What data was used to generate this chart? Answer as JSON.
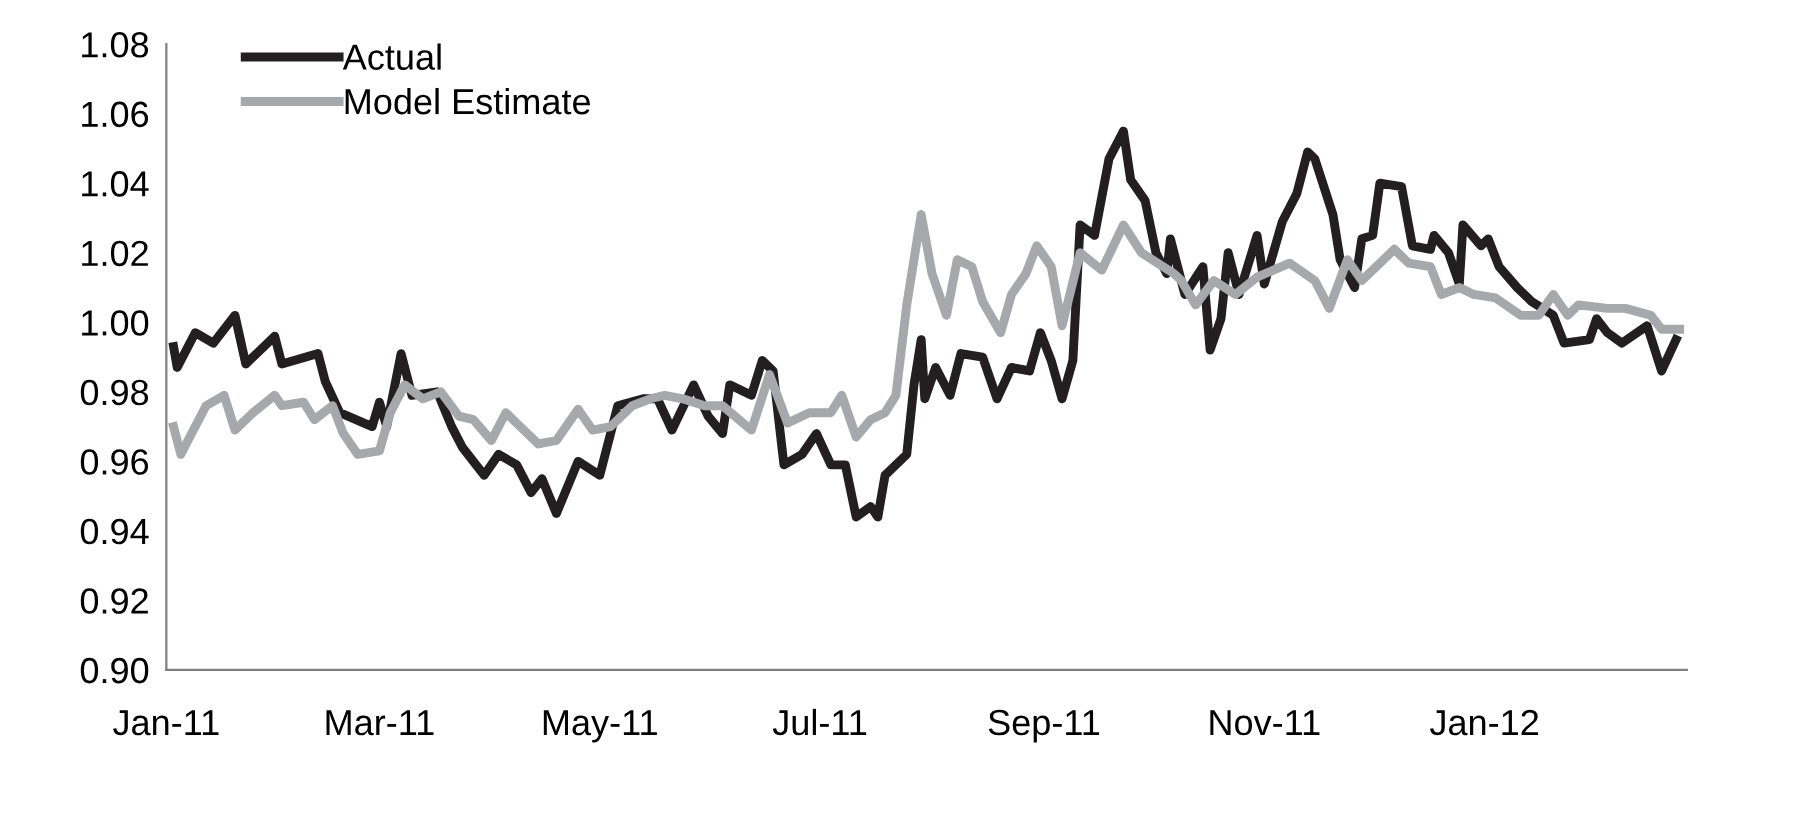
{
  "chart_data": {
    "type": "line",
    "series": [
      {
        "name": "Actual",
        "color": "#231f20",
        "x": [
          "2011-01-03",
          "2011-01-04",
          "2011-01-09",
          "2011-01-14",
          "2011-01-20",
          "2011-01-23",
          "2011-01-31",
          "2011-02-02",
          "2011-02-12",
          "2011-02-14",
          "2011-02-18",
          "2011-02-27",
          "2011-03-01",
          "2011-03-03",
          "2011-03-07",
          "2011-03-10",
          "2011-03-17",
          "2011-03-21",
          "2011-03-24",
          "2011-03-30",
          "2011-04-03",
          "2011-04-08",
          "2011-04-12",
          "2011-04-15",
          "2011-04-19",
          "2011-04-25",
          "2011-05-01",
          "2011-05-06",
          "2011-05-13",
          "2011-05-17",
          "2011-05-21",
          "2011-05-27",
          "2011-05-31",
          "2011-06-04",
          "2011-06-06",
          "2011-06-12",
          "2011-06-15",
          "2011-06-18",
          "2011-06-21",
          "2011-06-26",
          "2011-06-30",
          "2011-07-04",
          "2011-07-08",
          "2011-07-11",
          "2011-07-15",
          "2011-07-17",
          "2011-07-19",
          "2011-07-25",
          "2011-07-27",
          "2011-07-29",
          "2011-07-30",
          "2011-08-02",
          "2011-08-06",
          "2011-08-09",
          "2011-08-15",
          "2011-08-19",
          "2011-08-23",
          "2011-08-28",
          "2011-08-31",
          "2011-09-03",
          "2011-09-06",
          "2011-09-09",
          "2011-09-11",
          "2011-09-15",
          "2011-09-19",
          "2011-09-23",
          "2011-09-25",
          "2011-09-29",
          "2011-10-02",
          "2011-10-05",
          "2011-10-06",
          "2011-10-10",
          "2011-10-15",
          "2011-10-17",
          "2011-10-20",
          "2011-10-22",
          "2011-10-25",
          "2011-10-30",
          "2011-11-01",
          "2011-11-06",
          "2011-11-10",
          "2011-11-13",
          "2011-11-15",
          "2011-11-20",
          "2011-11-22",
          "2011-11-26",
          "2011-11-28",
          "2011-12-01",
          "2011-12-03",
          "2011-12-09",
          "2011-12-12",
          "2011-12-17",
          "2011-12-18",
          "2011-12-22",
          "2011-12-25",
          "2011-12-26",
          "2011-12-31",
          "2012-01-02",
          "2012-01-05",
          "2012-01-10",
          "2012-01-14",
          "2012-01-20",
          "2012-01-23",
          "2012-01-30",
          "2012-02-01",
          "2012-02-04",
          "2012-02-08",
          "2012-02-15",
          "2012-02-19",
          "2012-02-23"
        ],
        "values": [
          0.993,
          0.987,
          0.997,
          0.994,
          1.002,
          0.988,
          0.996,
          0.988,
          0.991,
          0.983,
          0.974,
          0.97,
          0.977,
          0.97,
          0.991,
          0.979,
          0.98,
          0.97,
          0.964,
          0.956,
          0.962,
          0.959,
          0.951,
          0.955,
          0.945,
          0.96,
          0.956,
          0.976,
          0.978,
          0.978,
          0.969,
          0.982,
          0.973,
          0.968,
          0.982,
          0.979,
          0.989,
          0.986,
          0.959,
          0.962,
          0.968,
          0.959,
          0.959,
          0.944,
          0.947,
          0.944,
          0.956,
          0.962,
          0.982,
          0.995,
          0.978,
          0.987,
          0.979,
          0.991,
          0.99,
          0.978,
          0.987,
          0.986,
          0.997,
          0.989,
          0.978,
          0.989,
          1.028,
          1.025,
          1.047,
          1.055,
          1.041,
          1.035,
          1.02,
          1.014,
          1.024,
          1.008,
          1.016,
          0.992,
          1.001,
          1.02,
          1.008,
          1.025,
          1.011,
          1.029,
          1.037,
          1.049,
          1.047,
          1.031,
          1.018,
          1.01,
          1.024,
          1.025,
          1.04,
          1.039,
          1.022,
          1.021,
          1.025,
          1.02,
          1.011,
          1.028,
          1.022,
          1.024,
          1.016,
          1.01,
          1.006,
          1.002,
          0.994,
          0.995,
          1.001,
          0.997,
          0.994,
          0.999,
          0.986,
          0.995
        ]
      },
      {
        "name": "Model Estimate",
        "color": "#a6a8ab",
        "x": [
          "2011-01-03",
          "2011-01-05",
          "2011-01-08",
          "2011-01-12",
          "2011-01-17",
          "2011-01-20",
          "2011-01-25",
          "2011-01-31",
          "2011-02-02",
          "2011-02-08",
          "2011-02-11",
          "2011-02-16",
          "2011-02-19",
          "2011-02-23",
          "2011-03-01",
          "2011-03-04",
          "2011-03-08",
          "2011-03-13",
          "2011-03-18",
          "2011-03-23",
          "2011-03-27",
          "2011-04-01",
          "2011-04-05",
          "2011-04-09",
          "2011-04-14",
          "2011-04-19",
          "2011-04-25",
          "2011-04-29",
          "2011-05-04",
          "2011-05-10",
          "2011-05-15",
          "2011-05-19",
          "2011-05-24",
          "2011-05-30",
          "2011-06-04",
          "2011-06-12",
          "2011-06-17",
          "2011-06-22",
          "2011-06-28",
          "2011-07-04",
          "2011-07-07",
          "2011-07-11",
          "2011-07-15",
          "2011-07-19",
          "2011-07-22",
          "2011-07-25",
          "2011-07-29",
          "2011-08-01",
          "2011-08-05",
          "2011-08-08",
          "2011-08-12",
          "2011-08-15",
          "2011-08-20",
          "2011-08-23",
          "2011-08-27",
          "2011-08-30",
          "2011-09-03",
          "2011-09-06",
          "2011-09-11",
          "2011-09-17",
          "2011-09-23",
          "2011-09-28",
          "2011-10-04",
          "2011-10-07",
          "2011-10-09",
          "2011-10-13",
          "2011-10-18",
          "2011-10-24",
          "2011-10-30",
          "2011-11-08",
          "2011-11-15",
          "2011-11-19",
          "2011-11-24",
          "2011-11-28",
          "2011-12-07",
          "2011-12-11",
          "2011-12-17",
          "2011-12-20",
          "2011-12-25",
          "2011-12-29",
          "2012-01-04",
          "2012-01-11",
          "2012-01-16",
          "2012-01-20",
          "2012-01-24",
          "2012-01-27",
          "2012-02-04",
          "2012-02-09",
          "2012-02-16",
          "2012-02-19",
          "2012-02-24"
        ],
        "values": [
          0.97,
          0.962,
          0.968,
          0.976,
          0.979,
          0.969,
          0.974,
          0.979,
          0.976,
          0.977,
          0.972,
          0.976,
          0.968,
          0.962,
          0.963,
          0.974,
          0.982,
          0.978,
          0.98,
          0.973,
          0.972,
          0.966,
          0.974,
          0.97,
          0.965,
          0.966,
          0.975,
          0.969,
          0.97,
          0.976,
          0.978,
          0.979,
          0.978,
          0.976,
          0.976,
          0.969,
          0.985,
          0.971,
          0.974,
          0.974,
          0.979,
          0.967,
          0.972,
          0.974,
          0.979,
          1.005,
          1.031,
          1.014,
          1.002,
          1.018,
          1.016,
          1.006,
          0.997,
          1.008,
          1.014,
          1.022,
          1.016,
          0.999,
          1.02,
          1.015,
          1.028,
          1.02,
          1.016,
          1.014,
          1.012,
          1.005,
          1.012,
          1.008,
          1.013,
          1.017,
          1.012,
          1.004,
          1.018,
          1.012,
          1.021,
          1.017,
          1.016,
          1.008,
          1.01,
          1.008,
          1.007,
          1.002,
          1.002,
          1.008,
          1.002,
          1.005,
          1.004,
          1.004,
          1.002,
          0.998,
          0.998
        ]
      }
    ],
    "xlim": [
      "2011-01-01",
      "2012-02-26"
    ],
    "xticks": [
      {
        "value": "2011-01-01",
        "label": "Jan-11"
      },
      {
        "value": "2011-03-01",
        "label": "Mar-11"
      },
      {
        "value": "2011-05-01",
        "label": "May-11"
      },
      {
        "value": "2011-07-01",
        "label": "Jul-11"
      },
      {
        "value": "2011-09-01",
        "label": "Sep-11"
      },
      {
        "value": "2011-11-01",
        "label": "Nov-11"
      },
      {
        "value": "2012-01-01",
        "label": "Jan-12"
      }
    ],
    "ylim": [
      0.9,
      1.08
    ],
    "yticks": [
      {
        "value": 0.9,
        "label": "0.90"
      },
      {
        "value": 0.92,
        "label": "0.92"
      },
      {
        "value": 0.94,
        "label": "0.94"
      },
      {
        "value": 0.96,
        "label": "0.96"
      },
      {
        "value": 0.98,
        "label": "0.98"
      },
      {
        "value": 1.0,
        "label": "1.00"
      },
      {
        "value": 1.02,
        "label": "1.02"
      },
      {
        "value": 1.04,
        "label": "1.04"
      },
      {
        "value": 1.06,
        "label": "1.06"
      },
      {
        "value": 1.08,
        "label": "1.08"
      }
    ],
    "grid": false,
    "legend": "top left",
    "marker": "none",
    "line_style": "solid"
  }
}
